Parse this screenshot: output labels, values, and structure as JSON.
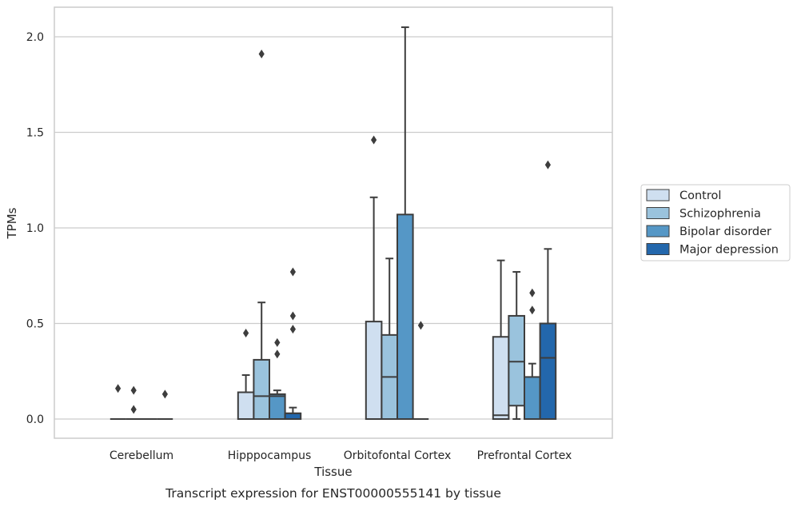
{
  "chart_data": {
    "type": "box",
    "caption": "Transcript expression for ENST00000555141 by tissue",
    "xlabel": "Tissue",
    "ylabel": "TPMs",
    "ylim": [
      -0.1,
      2.15
    ],
    "yticks": [
      0.0,
      0.5,
      1.0,
      1.5,
      2.0
    ],
    "ytick_labels": [
      "0.0",
      "0.5",
      "1.0",
      "1.5",
      "2.0"
    ],
    "categories": [
      "Cerebellum",
      "Hipppocampus",
      "Orbitofontal Cortex",
      "Prefrontal Cortex"
    ],
    "grid": "horizontal",
    "legend_position": "right",
    "series": [
      {
        "name": "Control",
        "color": "#cfdff0",
        "boxes": [
          {
            "q1": 0.0,
            "median": 0.0,
            "q3": 0.0,
            "whislo": 0.0,
            "whishi": 0.0,
            "fliers": [
              0.16
            ]
          },
          {
            "q1": 0.0,
            "median": 0.0,
            "q3": 0.14,
            "whislo": 0.0,
            "whishi": 0.23,
            "fliers": [
              0.45
            ]
          },
          {
            "q1": 0.0,
            "median": 0.0,
            "q3": 0.51,
            "whislo": 0.0,
            "whishi": 1.16,
            "fliers": [
              1.46
            ]
          },
          {
            "q1": 0.0,
            "median": 0.02,
            "q3": 0.43,
            "whislo": 0.0,
            "whishi": 0.83,
            "fliers": []
          }
        ]
      },
      {
        "name": "Schizophrenia",
        "color": "#9ac3dd",
        "boxes": [
          {
            "q1": 0.0,
            "median": 0.0,
            "q3": 0.0,
            "whislo": 0.0,
            "whishi": 0.0,
            "fliers": [
              0.15,
              0.05
            ]
          },
          {
            "q1": 0.0,
            "median": 0.12,
            "q3": 0.31,
            "whislo": 0.0,
            "whishi": 0.61,
            "fliers": [
              1.91
            ]
          },
          {
            "q1": 0.0,
            "median": 0.22,
            "q3": 0.44,
            "whislo": 0.0,
            "whishi": 0.84,
            "fliers": []
          },
          {
            "q1": 0.07,
            "median": 0.3,
            "q3": 0.54,
            "whislo": 0.0,
            "whishi": 0.77,
            "fliers": []
          }
        ]
      },
      {
        "name": "Bipolar disorder",
        "color": "#5597c6",
        "boxes": [
          {
            "q1": 0.0,
            "median": 0.0,
            "q3": 0.0,
            "whislo": 0.0,
            "whishi": 0.0,
            "fliers": []
          },
          {
            "q1": 0.0,
            "median": 0.12,
            "q3": 0.13,
            "whislo": 0.0,
            "whishi": 0.15,
            "fliers": [
              0.4,
              0.34
            ]
          },
          {
            "q1": 0.0,
            "median": 0.0,
            "q3": 1.07,
            "whislo": 0.0,
            "whishi": 2.05,
            "fliers": []
          },
          {
            "q1": 0.0,
            "median": 0.0,
            "q3": 0.22,
            "whislo": 0.0,
            "whishi": 0.29,
            "fliers": [
              0.66,
              0.57
            ]
          }
        ]
      },
      {
        "name": "Major depression",
        "color": "#2367ac",
        "boxes": [
          {
            "q1": 0.0,
            "median": 0.0,
            "q3": 0.0,
            "whislo": 0.0,
            "whishi": 0.0,
            "fliers": [
              0.13
            ]
          },
          {
            "q1": 0.0,
            "median": 0.03,
            "q3": 0.03,
            "whislo": 0.0,
            "whishi": 0.06,
            "fliers": [
              0.77,
              0.54,
              0.47
            ]
          },
          {
            "q1": 0.0,
            "median": 0.0,
            "q3": 0.0,
            "whislo": 0.0,
            "whishi": 0.0,
            "fliers": [
              0.49
            ]
          },
          {
            "q1": 0.0,
            "median": 0.32,
            "q3": 0.5,
            "whislo": 0.0,
            "whishi": 0.89,
            "fliers": [
              1.33
            ]
          }
        ]
      }
    ]
  }
}
